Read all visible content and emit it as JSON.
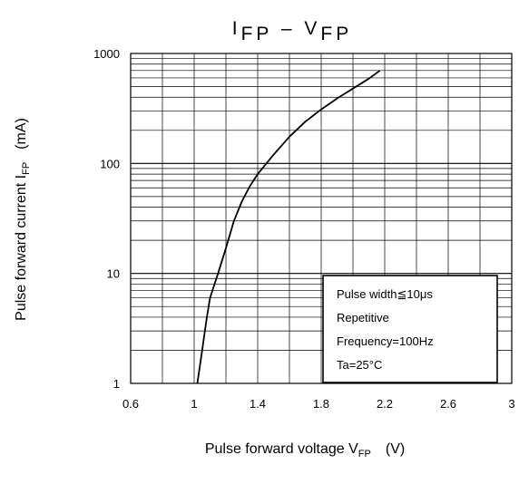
{
  "chart_data": {
    "type": "line",
    "title": {
      "parts": [
        {
          "text": "I",
          "sub": "FP"
        },
        {
          "text": " – ",
          "sub": ""
        },
        {
          "text": "V",
          "sub": "FP"
        }
      ]
    },
    "xlabel": {
      "main": "Pulse forward voltage   V",
      "sub": "FP",
      "unit": "(V)"
    },
    "ylabel": {
      "main": "Pulse forward current   I",
      "sub": "FP",
      "unit": "(mA)"
    },
    "x_scale": "linear",
    "y_scale": "log",
    "xlim": [
      0.6,
      3.0
    ],
    "ylim": [
      1,
      1000
    ],
    "x_ticks": [
      0.6,
      1.0,
      1.4,
      1.8,
      2.2,
      2.6,
      3.0
    ],
    "x_tick_labels": [
      "0.6",
      "1",
      "1.4",
      "1.8",
      "2.2",
      "2.6",
      "3"
    ],
    "y_ticks": [
      1,
      10,
      100,
      1000
    ],
    "y_tick_labels": [
      "1",
      "10",
      "100",
      "1000"
    ],
    "grid": true,
    "series": [
      {
        "x": [
          1.02,
          1.05,
          1.08,
          1.1,
          1.15,
          1.2,
          1.25,
          1.3,
          1.35,
          1.4,
          1.5,
          1.6,
          1.7,
          1.8,
          1.9,
          2.0,
          2.1,
          2.17
        ],
        "y": [
          1,
          2,
          4,
          6,
          10,
          17,
          30,
          45,
          62,
          80,
          120,
          175,
          240,
          310,
          390,
          480,
          590,
          700
        ]
      }
    ],
    "legend_box": {
      "placement": "bottom-right",
      "lines": [
        "Pulse width≦10μs",
        "Repetitive",
        "Frequency=100Hz",
        "Ta=25°C"
      ]
    },
    "colors": {
      "grid": "#000000",
      "curve": "#000000",
      "background": "#ffffff"
    }
  }
}
